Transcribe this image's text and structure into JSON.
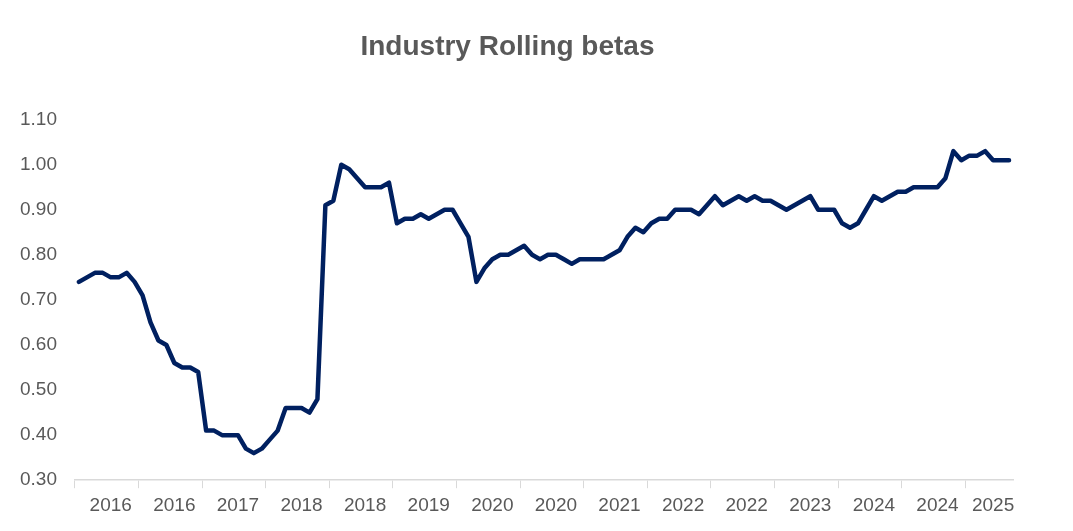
{
  "chart_data": {
    "type": "line",
    "title": "Industry Rolling betas",
    "categories": [
      null,
      null,
      null,
      null,
      "2016",
      null,
      null,
      null,
      null,
      null,
      null,
      null,
      "2016",
      null,
      null,
      null,
      null,
      null,
      null,
      null,
      "2017",
      null,
      null,
      null,
      null,
      null,
      null,
      null,
      "2018",
      null,
      null,
      null,
      null,
      null,
      null,
      null,
      "2018",
      null,
      null,
      null,
      null,
      null,
      null,
      null,
      "2019",
      null,
      null,
      null,
      null,
      null,
      null,
      null,
      "2020",
      null,
      null,
      null,
      null,
      null,
      null,
      null,
      "2020",
      null,
      null,
      null,
      null,
      null,
      null,
      null,
      "2021",
      null,
      null,
      null,
      null,
      null,
      null,
      null,
      "2022",
      null,
      null,
      null,
      null,
      null,
      null,
      null,
      "2022",
      null,
      null,
      null,
      null,
      null,
      null,
      null,
      "2023",
      null,
      null,
      null,
      null,
      null,
      null,
      null,
      "2024",
      null,
      null,
      null,
      null,
      null,
      null,
      null,
      "2024",
      null,
      null,
      null,
      null,
      null,
      null,
      "2025",
      null,
      null
    ],
    "series": [
      {
        "color": "#002060",
        "values": [
          0.74,
          0.75,
          0.76,
          0.76,
          0.75,
          0.75,
          0.76,
          0.74,
          0.71,
          0.65,
          0.61,
          0.6,
          0.56,
          0.55,
          0.55,
          0.54,
          0.41,
          0.41,
          0.4,
          0.4,
          0.4,
          0.37,
          0.36,
          0.37,
          0.39,
          0.41,
          0.46,
          0.46,
          0.46,
          0.45,
          0.48,
          0.91,
          0.92,
          1.0,
          0.99,
          0.97,
          0.95,
          0.95,
          0.95,
          0.96,
          0.87,
          0.88,
          0.88,
          0.89,
          0.88,
          0.89,
          0.9,
          0.9,
          0.87,
          0.84,
          0.74,
          0.77,
          0.79,
          0.8,
          0.8,
          0.81,
          0.82,
          0.8,
          0.79,
          0.8,
          0.8,
          0.79,
          0.78,
          0.79,
          0.79,
          0.79,
          0.79,
          0.8,
          0.81,
          0.84,
          0.86,
          0.85,
          0.87,
          0.88,
          0.88,
          0.9,
          0.9,
          0.9,
          0.89,
          0.91,
          0.93,
          0.91,
          0.92,
          0.93,
          0.92,
          0.93,
          0.92,
          0.92,
          0.91,
          0.9,
          0.91,
          0.92,
          0.93,
          0.9,
          0.9,
          0.9,
          0.87,
          0.86,
          0.87,
          0.9,
          0.93,
          0.92,
          0.93,
          0.94,
          0.94,
          0.95,
          0.95,
          0.95,
          0.95,
          0.97,
          1.03,
          1.01,
          1.02,
          1.02,
          1.03,
          1.01,
          1.01,
          1.01
        ]
      }
    ],
    "ylim": [
      0.3,
      1.1
    ],
    "yticks": [
      {
        "value": 0.3,
        "label": "0.30"
      },
      {
        "value": 0.4,
        "label": "0.40"
      },
      {
        "value": 0.5,
        "label": "0.50"
      },
      {
        "value": 0.6,
        "label": "0.60"
      },
      {
        "value": 0.7,
        "label": "0.70"
      },
      {
        "value": 0.8,
        "label": "0.80"
      },
      {
        "value": 0.9,
        "label": "0.90"
      },
      {
        "value": 1.0,
        "label": "1.00"
      },
      {
        "value": 1.1,
        "label": "1.10"
      }
    ],
    "grid": false,
    "legend": false,
    "marker": "none",
    "line_style": "solid"
  }
}
